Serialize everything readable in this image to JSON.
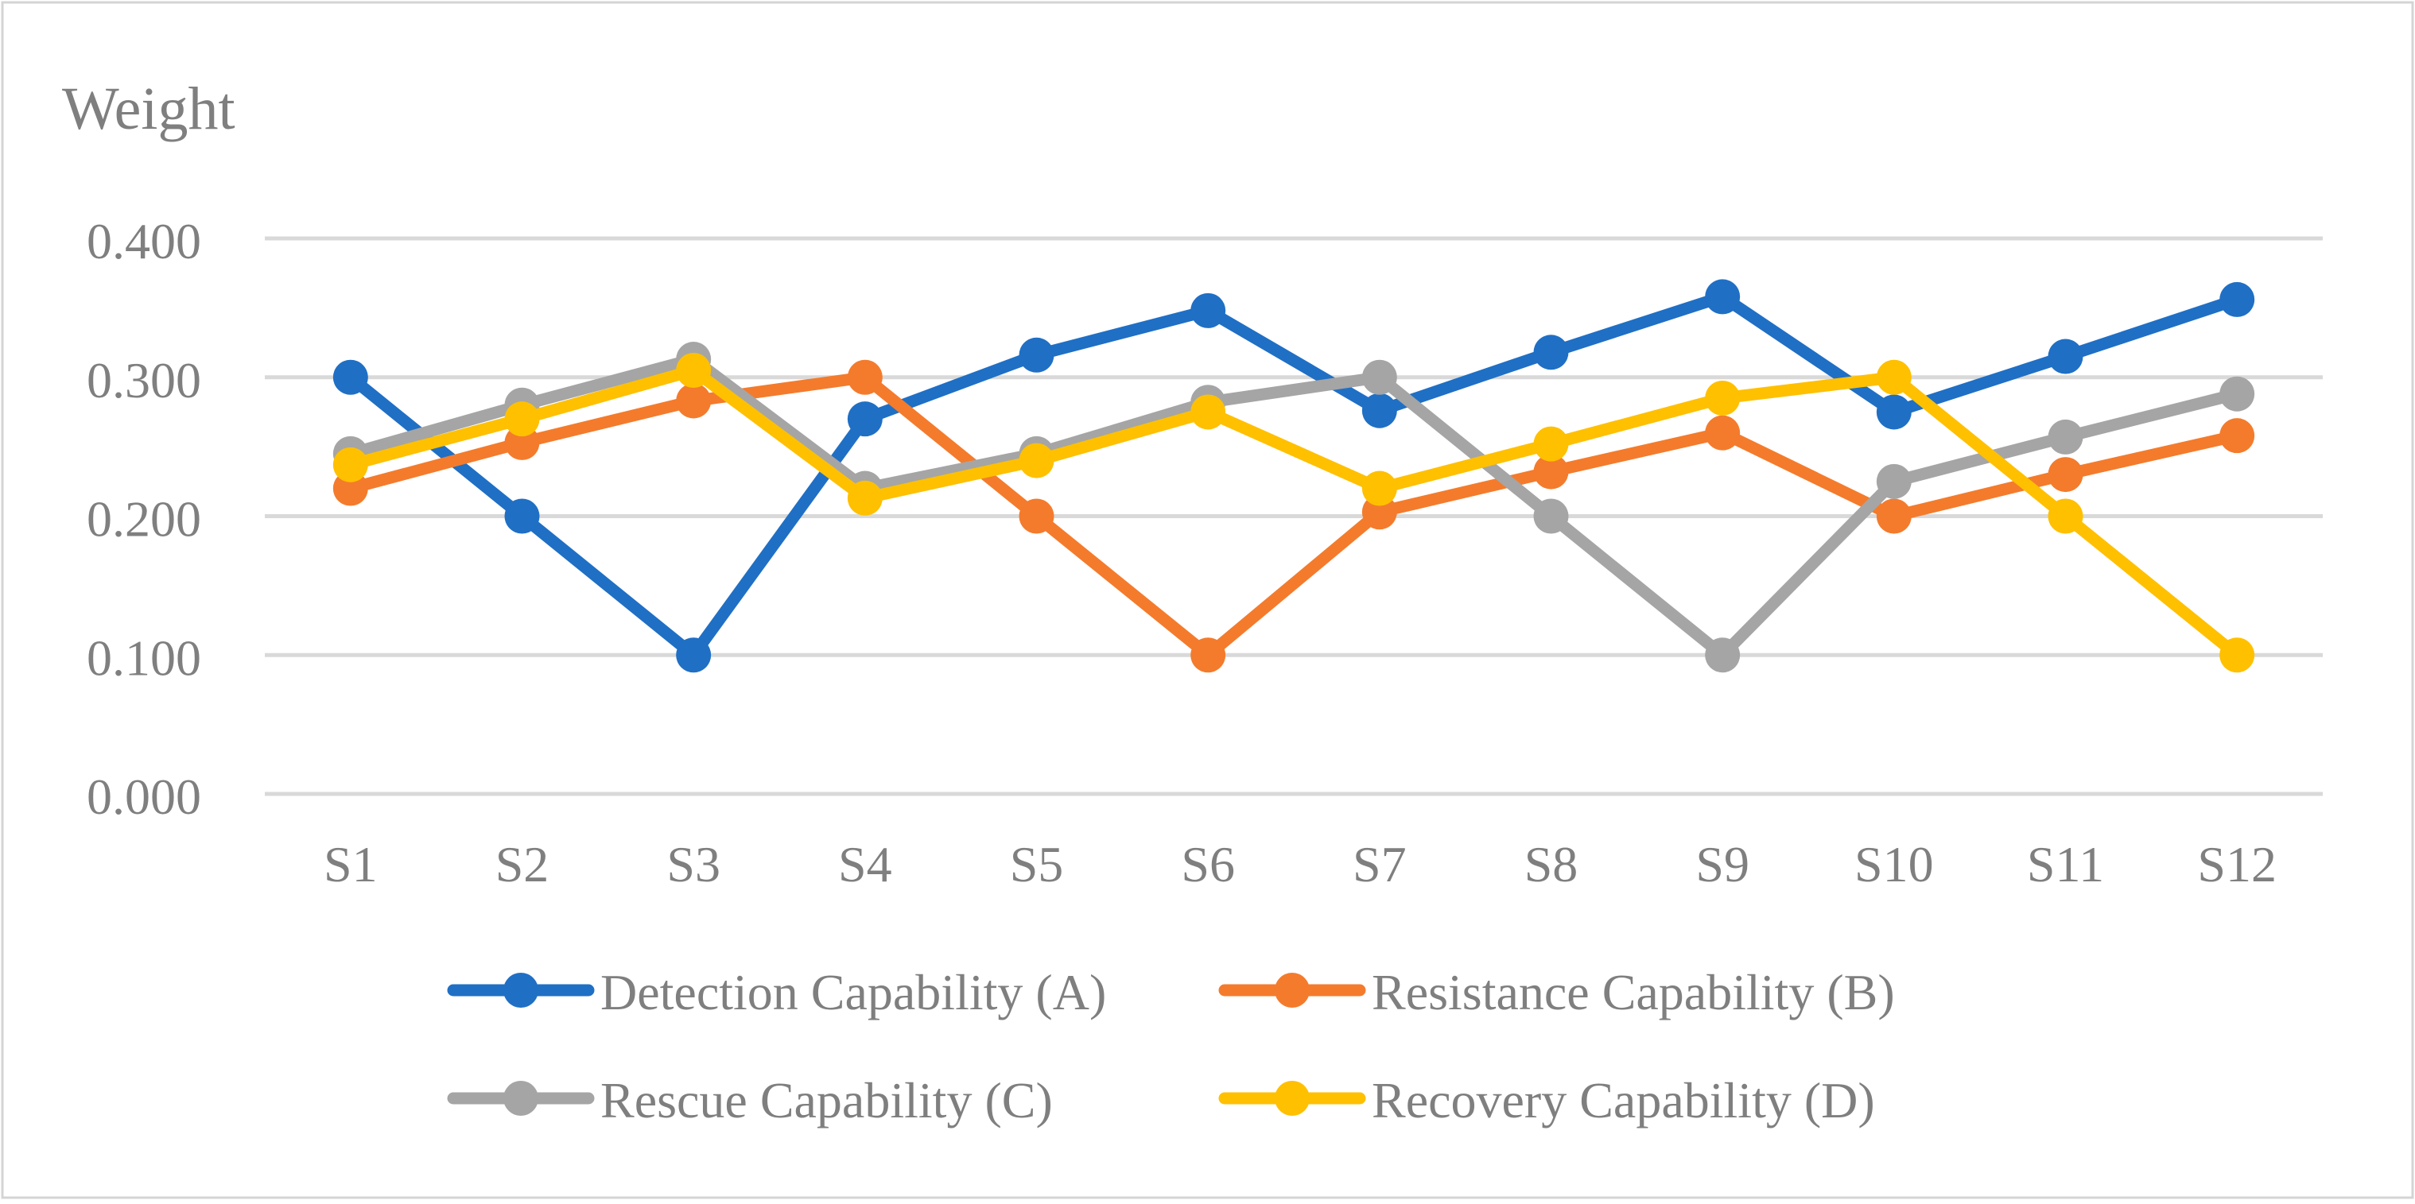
{
  "chart_data": {
    "type": "line",
    "title": "",
    "ylabel": "Weight",
    "xlabel": "",
    "ylim": [
      0,
      0.4
    ],
    "yticks": [
      "0.000",
      "0.100",
      "0.200",
      "0.300",
      "0.400"
    ],
    "grid": true,
    "legend_position": "bottom",
    "categories": [
      "S1",
      "S2",
      "S3",
      "S4",
      "S5",
      "S6",
      "S7",
      "S8",
      "S9",
      "S10",
      "S11",
      "S12"
    ],
    "series": [
      {
        "name": "Detection Capability (A)",
        "color": "#1F6FC5",
        "values": [
          0.3,
          0.2,
          0.1,
          0.27,
          0.316,
          0.348,
          0.276,
          0.318,
          0.358,
          0.275,
          0.315,
          0.356
        ]
      },
      {
        "name": "Resistance Capability (B)",
        "color": "#F47B2C",
        "values": [
          0.22,
          0.253,
          0.283,
          0.3,
          0.2,
          0.1,
          0.203,
          0.232,
          0.26,
          0.2,
          0.23,
          0.258
        ]
      },
      {
        "name": "Rescue Capability (C)",
        "color": "#A5A5A5",
        "values": [
          0.245,
          0.28,
          0.313,
          0.22,
          0.245,
          0.282,
          0.3,
          0.2,
          0.1,
          0.225,
          0.257,
          0.288
        ]
      },
      {
        "name": "Recovery Capability (D)",
        "color": "#FFC000",
        "values": [
          0.237,
          0.27,
          0.305,
          0.213,
          0.24,
          0.275,
          0.22,
          0.252,
          0.285,
          0.3,
          0.2,
          0.1
        ]
      }
    ]
  }
}
